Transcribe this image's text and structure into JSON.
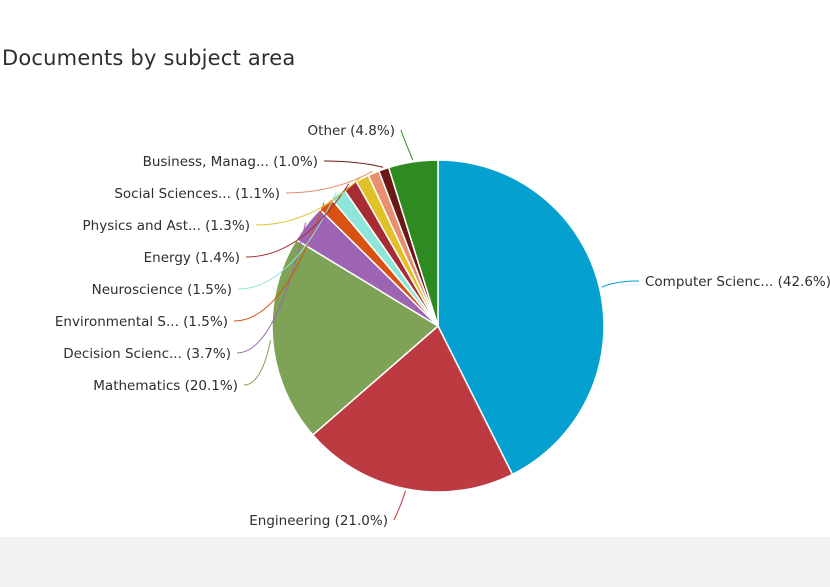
{
  "chart_data": {
    "type": "pie",
    "title": "Documents by subject area",
    "slices": [
      {
        "label": "Computer Scienc... (42.6%)",
        "value": 42.6,
        "color": "#03a0d0"
      },
      {
        "label": "Engineering (21.0%)",
        "value": 21.0,
        "color": "#bd3a41"
      },
      {
        "label": "Mathematics (20.1%)",
        "value": 20.1,
        "color": "#7ea256"
      },
      {
        "label": "Decision Scienc... (3.7%)",
        "value": 3.7,
        "color": "#9c64b2"
      },
      {
        "label": "Environmental S... (1.5%)",
        "value": 1.5,
        "color": "#d85214"
      },
      {
        "label": "Neuroscience (1.5%)",
        "value": 1.5,
        "color": "#8ee6d9"
      },
      {
        "label": "Energy (1.4%)",
        "value": 1.4,
        "color": "#a72d35"
      },
      {
        "label": "Physics and Ast... (1.3%)",
        "value": 1.3,
        "color": "#e0c228"
      },
      {
        "label": "Social Sciences... (1.1%)",
        "value": 1.1,
        "color": "#e88f6f"
      },
      {
        "label": "Business, Manag... (1.0%)",
        "value": 1.0,
        "color": "#6a1818"
      },
      {
        "label": "Other (4.8%)",
        "value": 4.8,
        "color": "#2e8b21"
      }
    ]
  }
}
